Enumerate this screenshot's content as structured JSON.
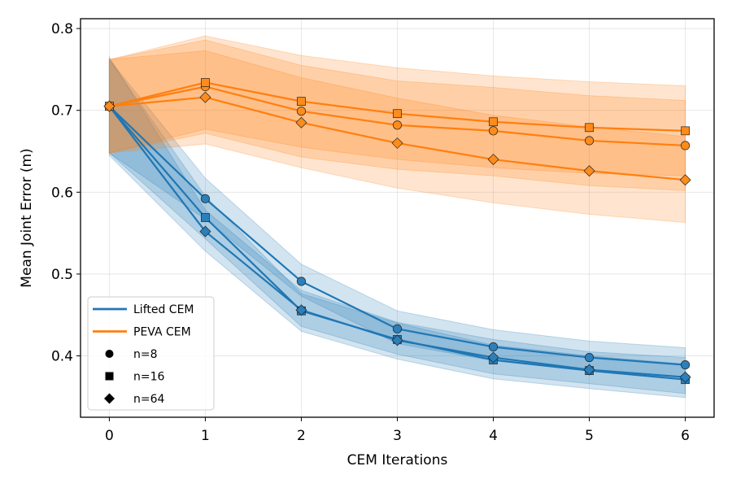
{
  "chart_data": {
    "type": "line",
    "xlabel": "CEM Iterations",
    "ylabel": "Mean Joint Error (m)",
    "xlim": [
      -0.3,
      6.3
    ],
    "ylim": [
      0.325,
      0.812
    ],
    "xticks": [
      "0",
      "1",
      "2",
      "3",
      "4",
      "5",
      "6"
    ],
    "yticks": [
      "0.4",
      "0.5",
      "0.6",
      "0.7",
      "0.8"
    ],
    "grid": true,
    "legend_position": "lower-left",
    "x": [
      0,
      1,
      2,
      3,
      4,
      5,
      6
    ],
    "series": [
      {
        "name": "Lifted CEM",
        "n": "n=8",
        "marker": "circle",
        "color": "#1f77b4",
        "values": [
          0.705,
          0.592,
          0.491,
          0.433,
          0.411,
          0.398,
          0.389
        ],
        "lower": [
          0.648,
          0.567,
          0.473,
          0.415,
          0.394,
          0.383,
          0.373
        ],
        "upper": [
          0.762,
          0.617,
          0.512,
          0.455,
          0.432,
          0.418,
          0.41
        ]
      },
      {
        "name": "Lifted CEM",
        "n": "n=16",
        "marker": "square",
        "color": "#1f77b4",
        "values": [
          0.705,
          0.569,
          0.455,
          0.42,
          0.395,
          0.382,
          0.371
        ],
        "lower": [
          0.648,
          0.543,
          0.436,
          0.402,
          0.378,
          0.366,
          0.354
        ],
        "upper": [
          0.762,
          0.595,
          0.476,
          0.44,
          0.413,
          0.4,
          0.39
        ]
      },
      {
        "name": "Lifted CEM",
        "n": "n=64",
        "marker": "diamond",
        "color": "#1f77b4",
        "values": [
          0.705,
          0.552,
          0.456,
          0.419,
          0.398,
          0.383,
          0.374
        ],
        "lower": [
          0.645,
          0.528,
          0.43,
          0.396,
          0.372,
          0.36,
          0.349
        ],
        "upper": [
          0.765,
          0.578,
          0.48,
          0.441,
          0.42,
          0.405,
          0.398
        ]
      },
      {
        "name": "PEVA CEM",
        "n": "n=8",
        "marker": "circle",
        "color": "#ff7f0e",
        "values": [
          0.705,
          0.729,
          0.699,
          0.682,
          0.675,
          0.663,
          0.657
        ],
        "lower": [
          0.648,
          0.672,
          0.643,
          0.628,
          0.62,
          0.608,
          0.602
        ],
        "upper": [
          0.762,
          0.786,
          0.755,
          0.736,
          0.728,
          0.718,
          0.712
        ]
      },
      {
        "name": "PEVA CEM",
        "n": "n=16",
        "marker": "square",
        "color": "#ff7f0e",
        "values": [
          0.705,
          0.734,
          0.711,
          0.696,
          0.686,
          0.679,
          0.675
        ],
        "lower": [
          0.648,
          0.677,
          0.655,
          0.64,
          0.63,
          0.623,
          0.62
        ],
        "upper": [
          0.762,
          0.791,
          0.767,
          0.752,
          0.742,
          0.735,
          0.73
        ]
      },
      {
        "name": "PEVA CEM",
        "n": "n=64",
        "marker": "diamond",
        "color": "#ff7f0e",
        "values": [
          0.705,
          0.716,
          0.685,
          0.66,
          0.64,
          0.626,
          0.615
        ],
        "lower": [
          0.648,
          0.659,
          0.63,
          0.605,
          0.587,
          0.573,
          0.563
        ],
        "upper": [
          0.762,
          0.773,
          0.74,
          0.715,
          0.694,
          0.68,
          0.668
        ]
      }
    ]
  },
  "legend": {
    "items": [
      {
        "label": "Lifted CEM",
        "kind": "line",
        "color": "#1f77b4"
      },
      {
        "label": "PEVA CEM",
        "kind": "line",
        "color": "#ff7f0e"
      },
      {
        "label": "n=8",
        "kind": "circle",
        "color": "#000000"
      },
      {
        "label": "n=16",
        "kind": "square",
        "color": "#000000"
      },
      {
        "label": "n=64",
        "kind": "diamond",
        "color": "#000000"
      }
    ]
  }
}
